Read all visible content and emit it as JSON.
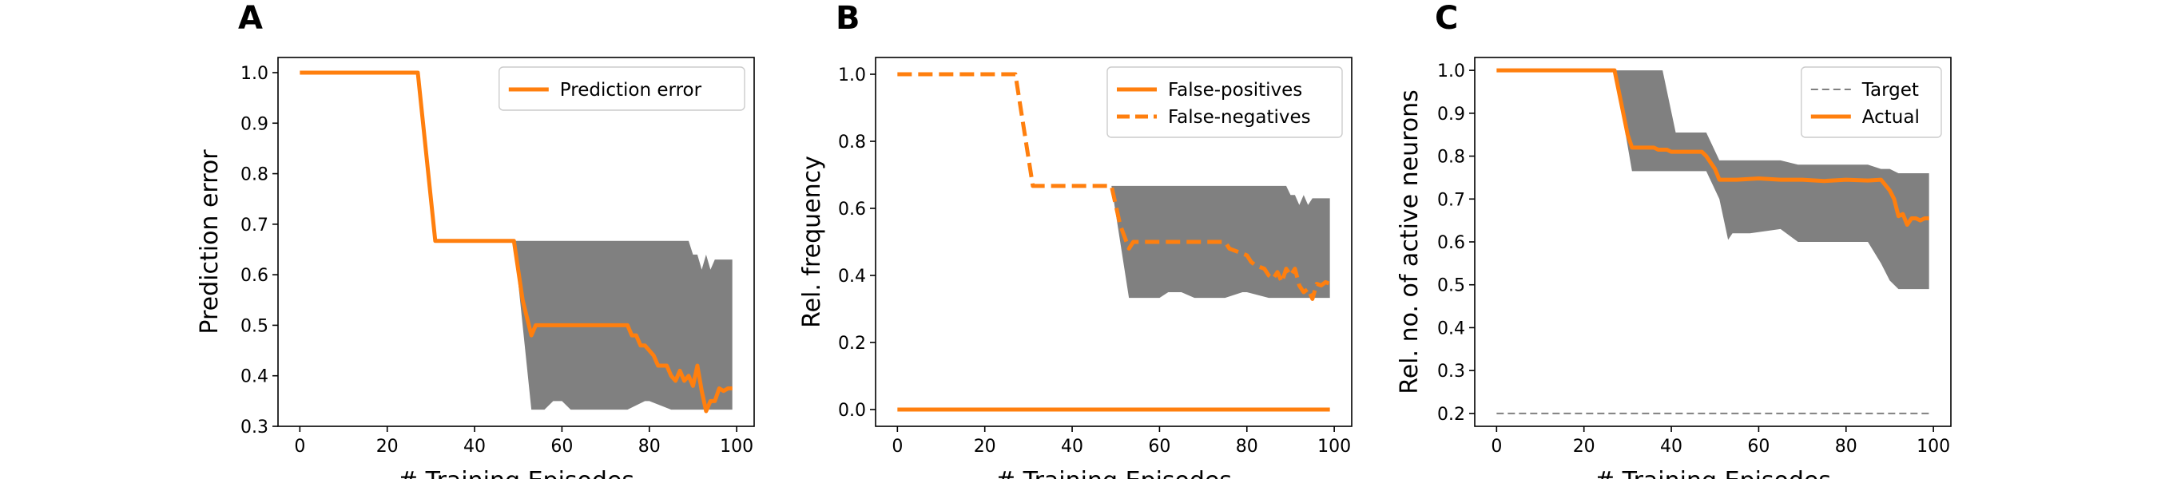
{
  "colors": {
    "series": "#ff7f0e",
    "band": "#808080",
    "target": "#808080",
    "axis": "#000000",
    "background": "#ffffff"
  },
  "chart_data": [
    {
      "type": "line",
      "panel": "A",
      "xlabel": "# Training Episodes",
      "ylabel": "Prediction error",
      "xlim": [
        -5,
        104
      ],
      "ylim": [
        0.3,
        1.03
      ],
      "xticks": [
        0,
        20,
        40,
        60,
        80,
        100
      ],
      "yticks": [
        0.3,
        0.4,
        0.5,
        0.6,
        0.7,
        0.8,
        0.9,
        1.0
      ],
      "legend": "top-right",
      "band": {
        "x": [
          0,
          27,
          31,
          49,
          53,
          56,
          58,
          60,
          62,
          65,
          68,
          75,
          79,
          80,
          85,
          87,
          89,
          90,
          91,
          92,
          93,
          94,
          95,
          96,
          97,
          98,
          99
        ],
        "upper": [
          1.0,
          1.0,
          0.667,
          0.667,
          0.667,
          0.667,
          0.667,
          0.667,
          0.667,
          0.667,
          0.667,
          0.667,
          0.667,
          0.667,
          0.667,
          0.667,
          0.667,
          0.64,
          0.64,
          0.61,
          0.64,
          0.61,
          0.63,
          0.63,
          0.63,
          0.63,
          0.63
        ],
        "lower": [
          1.0,
          1.0,
          0.667,
          0.667,
          0.333,
          0.333,
          0.35,
          0.35,
          0.333,
          0.333,
          0.333,
          0.333,
          0.35,
          0.35,
          0.333,
          0.333,
          0.333,
          0.333,
          0.333,
          0.333,
          0.333,
          0.333,
          0.333,
          0.333,
          0.333,
          0.333,
          0.333
        ]
      },
      "series": [
        {
          "name": "Prediction error",
          "style": "solid",
          "x": [
            0,
            27,
            31,
            49,
            51,
            53,
            54,
            56,
            75,
            76,
            77,
            78,
            79,
            81,
            82,
            84,
            85,
            86,
            87,
            88,
            89,
            90,
            91,
            92,
            93,
            94,
            95,
            96,
            97,
            98,
            99
          ],
          "y": [
            1.0,
            1.0,
            0.667,
            0.667,
            0.55,
            0.48,
            0.5,
            0.5,
            0.5,
            0.48,
            0.48,
            0.46,
            0.46,
            0.44,
            0.42,
            0.42,
            0.4,
            0.39,
            0.41,
            0.39,
            0.4,
            0.38,
            0.42,
            0.37,
            0.33,
            0.35,
            0.35,
            0.375,
            0.37,
            0.375,
            0.375
          ]
        }
      ]
    },
    {
      "type": "line",
      "panel": "B",
      "xlabel": "# Training Episodes",
      "ylabel": "Rel. frequency",
      "xlim": [
        -5,
        104
      ],
      "ylim": [
        -0.05,
        1.05
      ],
      "xticks": [
        0,
        20,
        40,
        60,
        80,
        100
      ],
      "yticks": [
        0.0,
        0.2,
        0.4,
        0.6,
        0.8,
        1.0
      ],
      "legend": "top-right",
      "band": {
        "x": [
          0,
          27,
          31,
          49,
          53,
          60,
          62,
          65,
          68,
          75,
          79,
          80,
          85,
          87,
          89,
          90,
          91,
          92,
          93,
          94,
          95,
          96,
          97,
          98,
          99
        ],
        "upper": [
          1.0,
          1.0,
          0.667,
          0.667,
          0.667,
          0.667,
          0.667,
          0.667,
          0.667,
          0.667,
          0.667,
          0.667,
          0.667,
          0.667,
          0.667,
          0.64,
          0.64,
          0.61,
          0.64,
          0.61,
          0.63,
          0.63,
          0.63,
          0.63,
          0.63
        ],
        "lower": [
          1.0,
          1.0,
          0.667,
          0.667,
          0.333,
          0.333,
          0.35,
          0.35,
          0.333,
          0.333,
          0.35,
          0.35,
          0.333,
          0.333,
          0.333,
          0.333,
          0.333,
          0.333,
          0.333,
          0.333,
          0.333,
          0.333,
          0.333,
          0.333,
          0.333
        ]
      },
      "series": [
        {
          "name": "False-positives",
          "style": "solid",
          "x": [
            0,
            99
          ],
          "y": [
            0.0,
            0.0
          ]
        },
        {
          "name": "False-negatives",
          "style": "dashed",
          "x": [
            0,
            27,
            31,
            49,
            51,
            53,
            54,
            56,
            75,
            76,
            78,
            80,
            81,
            82,
            84,
            85,
            86,
            87,
            88,
            89,
            90,
            91,
            92,
            93,
            94,
            95,
            96,
            97,
            98,
            99
          ],
          "y": [
            1.0,
            1.0,
            0.667,
            0.667,
            0.55,
            0.48,
            0.5,
            0.5,
            0.5,
            0.48,
            0.47,
            0.46,
            0.44,
            0.43,
            0.42,
            0.4,
            0.39,
            0.41,
            0.38,
            0.42,
            0.4,
            0.42,
            0.37,
            0.35,
            0.36,
            0.33,
            0.375,
            0.37,
            0.38,
            0.375
          ]
        }
      ]
    },
    {
      "type": "line",
      "panel": "C",
      "xlabel": "# Training Episodes",
      "ylabel": "Rel. no. of active neurons",
      "xlim": [
        -5,
        104
      ],
      "ylim": [
        0.17,
        1.03
      ],
      "xticks": [
        0,
        20,
        40,
        60,
        80,
        100
      ],
      "yticks": [
        0.2,
        0.3,
        0.4,
        0.5,
        0.6,
        0.7,
        0.8,
        0.9,
        1.0
      ],
      "legend": "top-right",
      "band": {
        "x": [
          0,
          27,
          31,
          38,
          41,
          48,
          51,
          53,
          54,
          56,
          58,
          65,
          69,
          85,
          88,
          90,
          92,
          93,
          95,
          97,
          99
        ],
        "upper": [
          1.0,
          1.0,
          1.0,
          1.0,
          0.855,
          0.855,
          0.79,
          0.79,
          0.79,
          0.79,
          0.79,
          0.79,
          0.78,
          0.78,
          0.77,
          0.77,
          0.76,
          0.76,
          0.76,
          0.76,
          0.76
        ],
        "lower": [
          1.0,
          1.0,
          0.765,
          0.765,
          0.765,
          0.765,
          0.7,
          0.605,
          0.62,
          0.62,
          0.62,
          0.63,
          0.6,
          0.6,
          0.55,
          0.51,
          0.49,
          0.49,
          0.49,
          0.49,
          0.49
        ]
      },
      "series": [
        {
          "name": "Target",
          "style": "thin-dashed",
          "x": [
            0,
            99
          ],
          "y": [
            0.2,
            0.2
          ]
        },
        {
          "name": "Actual",
          "style": "solid",
          "x": [
            0,
            27,
            30,
            31,
            36,
            37,
            39,
            40,
            47,
            48,
            50,
            51,
            55,
            60,
            65,
            70,
            75,
            80,
            85,
            88,
            90,
            91,
            92,
            93,
            94,
            95,
            96,
            97,
            98,
            99
          ],
          "y": [
            1.0,
            1.0,
            0.85,
            0.82,
            0.82,
            0.815,
            0.815,
            0.81,
            0.81,
            0.8,
            0.77,
            0.745,
            0.745,
            0.748,
            0.745,
            0.745,
            0.742,
            0.745,
            0.743,
            0.745,
            0.72,
            0.7,
            0.66,
            0.665,
            0.64,
            0.655,
            0.655,
            0.65,
            0.655,
            0.655
          ]
        }
      ]
    }
  ]
}
